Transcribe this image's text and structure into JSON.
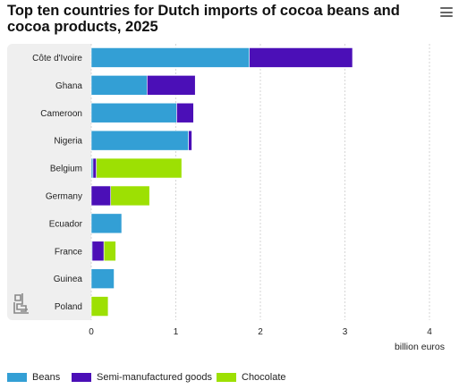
{
  "title": "Top ten countries for Dutch imports of cocoa beans and cocoa products, 2025",
  "menu_icon": "hamburger-menu-icon",
  "logo_icon": "cbs-logo-icon",
  "colors": {
    "Beans": "#339fd5",
    "Semi-manufactured goods": "#4b0fb7",
    "Chocolate": "#9de003",
    "plot_band": "#efefef"
  },
  "chart_data": {
    "type": "bar",
    "orientation": "horizontal",
    "stacked": true,
    "title": "Top ten countries for Dutch imports of cocoa beans and cocoa products, 2025",
    "xlabel": "billion euros",
    "ylabel": "",
    "xlim": [
      0,
      4
    ],
    "x_ticks": [
      "0",
      "1",
      "2",
      "3",
      "4"
    ],
    "grid": true,
    "legend_position": "bottom",
    "categories": [
      "Côte d'Ivoire",
      "Ghana",
      "Cameroon",
      "Nigeria",
      "Belgium",
      "Germany",
      "Ecuador",
      "France",
      "Guinea",
      "Poland"
    ],
    "series": [
      {
        "name": "Beans",
        "values": [
          1.87,
          0.66,
          1.01,
          1.15,
          0.02,
          0.0,
          0.36,
          0.01,
          0.27,
          0.0
        ]
      },
      {
        "name": "Semi-manufactured goods",
        "values": [
          1.22,
          0.57,
          0.2,
          0.04,
          0.04,
          0.23,
          0.0,
          0.14,
          0.0,
          0.0
        ]
      },
      {
        "name": "Chocolate",
        "values": [
          0.0,
          0.0,
          0.0,
          0.0,
          1.01,
          0.46,
          0.0,
          0.14,
          0.0,
          0.2
        ]
      }
    ]
  }
}
